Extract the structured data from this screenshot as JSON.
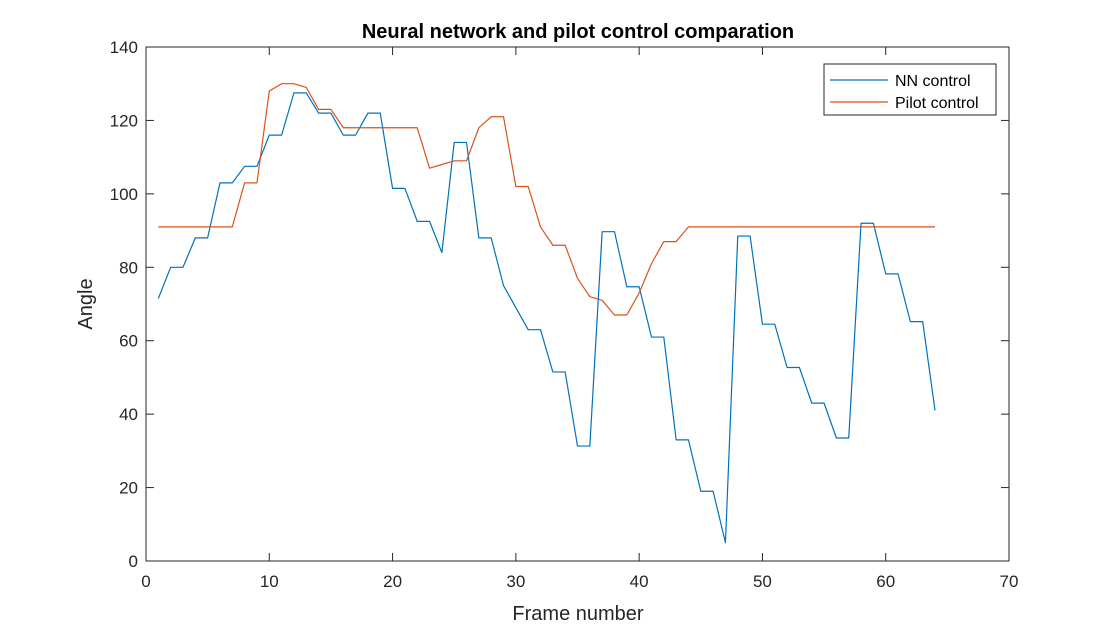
{
  "chart_data": {
    "type": "line",
    "title": "Neural network and pilot control comparation",
    "xlabel": "Frame number",
    "ylabel": "Angle",
    "xlim": [
      0,
      70
    ],
    "ylim": [
      0,
      140
    ],
    "xticks": [
      "0",
      "10",
      "20",
      "30",
      "40",
      "50",
      "60",
      "70"
    ],
    "yticks": [
      "0",
      "20",
      "40",
      "60",
      "80",
      "100",
      "120",
      "140"
    ],
    "grid": false,
    "legend_position": "top-right",
    "x": [
      1,
      2,
      3,
      4,
      5,
      6,
      7,
      8,
      9,
      10,
      11,
      12,
      13,
      14,
      15,
      16,
      17,
      18,
      19,
      20,
      21,
      22,
      23,
      24,
      25,
      26,
      27,
      28,
      29,
      30,
      31,
      32,
      33,
      34,
      35,
      36,
      37,
      38,
      39,
      40,
      41,
      42,
      43,
      44,
      45,
      46,
      47,
      48,
      49,
      50,
      51,
      52,
      53,
      54,
      55,
      56,
      57,
      58,
      59,
      60,
      61,
      62,
      63,
      64
    ],
    "series": [
      {
        "name": "NN control",
        "color": "#0072BD",
        "values": [
          71.5,
          80,
          80,
          88,
          88,
          103,
          103,
          107.5,
          107.5,
          116,
          116,
          127.5,
          127.5,
          122,
          122,
          116,
          116,
          122,
          122,
          101.5,
          101.5,
          92.5,
          92.5,
          84,
          114,
          114,
          88,
          88,
          75,
          69,
          63,
          63,
          51.5,
          51.5,
          31.3,
          31.3,
          89.7,
          89.7,
          74.7,
          74.7,
          61,
          61,
          33,
          33,
          19,
          19,
          5,
          88.5,
          88.5,
          64.5,
          64.5,
          52.7,
          52.7,
          43,
          43,
          33.5,
          33.5,
          92,
          92,
          78.2,
          78.2,
          65.2,
          65.2,
          41
        ]
      },
      {
        "name": "Pilot control",
        "color": "#D95319",
        "values": [
          91,
          91,
          91,
          91,
          91,
          91,
          91,
          103,
          103,
          128,
          130,
          130,
          129,
          123,
          123,
          118,
          118,
          118,
          118,
          118,
          118,
          118,
          107,
          108,
          109,
          109,
          118,
          121,
          121,
          102,
          102,
          91,
          86,
          86,
          77,
          72,
          71,
          67,
          67,
          73,
          81,
          87,
          87,
          91,
          91,
          91,
          91,
          91,
          91,
          91,
          91,
          91,
          91,
          91,
          91,
          91,
          91,
          91,
          91,
          91,
          91,
          91,
          91,
          91
        ]
      }
    ]
  }
}
